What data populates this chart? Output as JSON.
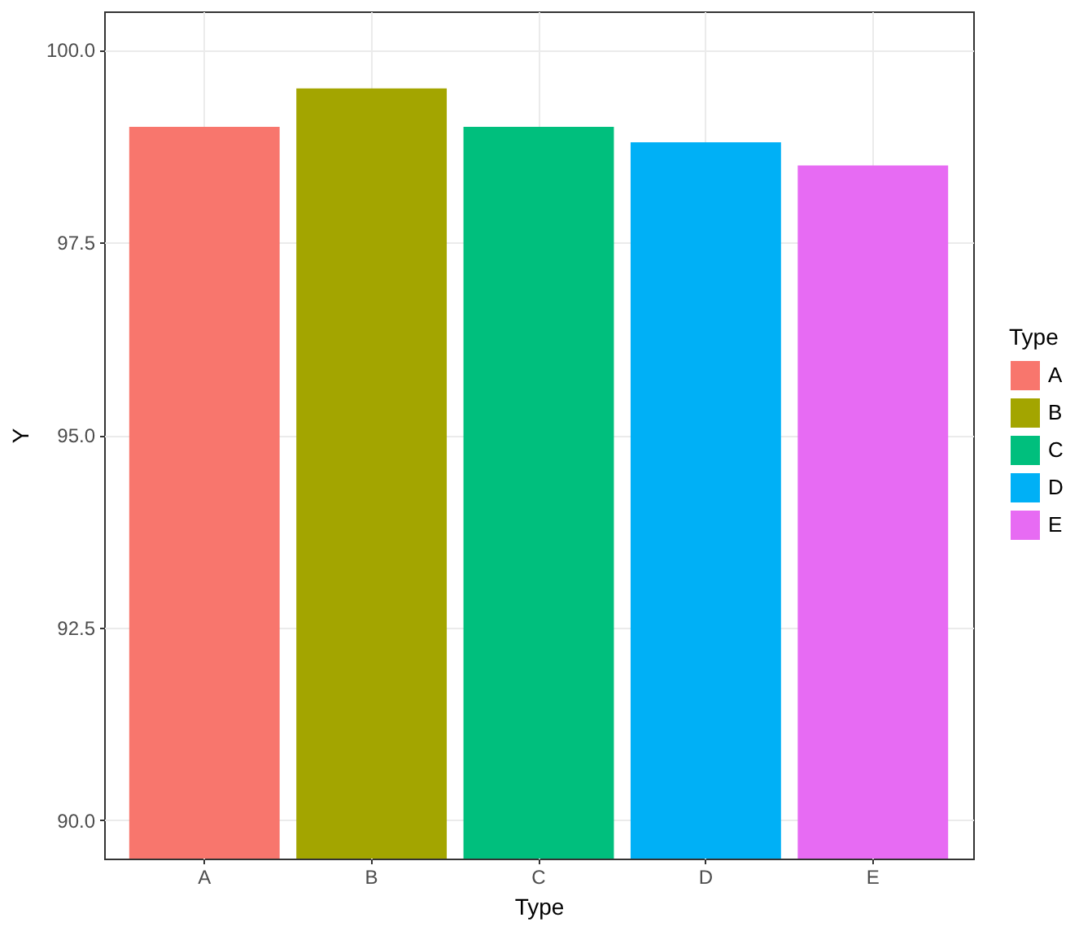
{
  "chart_data": {
    "type": "bar",
    "xlabel": "Type",
    "ylabel": "Y",
    "legend_title": "Type",
    "categories": [
      "A",
      "B",
      "C",
      "D",
      "E"
    ],
    "stacked": true,
    "series": [
      {
        "name": "A",
        "color": "#f8766d",
        "values": [
          99.0,
          null,
          null,
          null,
          null
        ]
      },
      {
        "name": "B",
        "color": "#a3a500",
        "values": [
          null,
          99.5,
          null,
          null,
          null
        ]
      },
      {
        "name": "C",
        "color": "#00bf7d",
        "values": [
          null,
          null,
          99.0,
          null,
          null
        ]
      },
      {
        "name": "D",
        "color": "#00b0f6",
        "values": [
          null,
          null,
          null,
          98.8,
          null
        ]
      },
      {
        "name": "E",
        "color": "#e76bf3",
        "values": [
          null,
          null,
          null,
          null,
          98.5
        ]
      }
    ],
    "ylim": [
      89.5,
      100.5
    ],
    "yticks": [
      {
        "value": 90,
        "label": "90.0"
      },
      92.5,
      {
        "value": 95,
        "label": "95.0"
      },
      97.5,
      {
        "value": 100,
        "label": "100.0"
      }
    ],
    "grid": true,
    "legend": "right"
  }
}
